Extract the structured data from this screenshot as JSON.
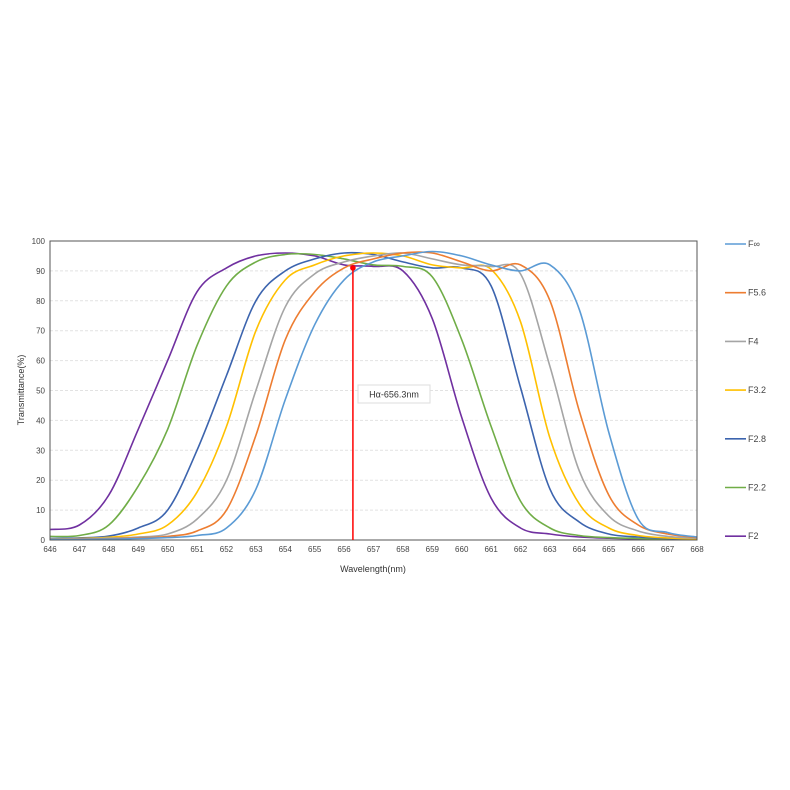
{
  "chart_data": {
    "type": "line",
    "title": "",
    "xlabel": "Wavelength(nm)",
    "ylabel": "Transmittance(%)",
    "xlim": [
      646,
      668
    ],
    "ylim": [
      0,
      100
    ],
    "xticks": [
      646,
      647,
      648,
      649,
      650,
      651,
      652,
      653,
      654,
      655,
      656,
      657,
      658,
      659,
      660,
      661,
      662,
      663,
      664,
      665,
      666,
      667,
      668
    ],
    "yticks": [
      0,
      10,
      20,
      30,
      40,
      50,
      60,
      70,
      80,
      90,
      100
    ],
    "grid": "horizontal dashed",
    "legend_position": "right",
    "x": [
      646,
      647,
      648,
      649,
      650,
      651,
      652,
      653,
      654,
      655,
      656,
      657,
      658,
      659,
      660,
      661,
      662,
      663,
      664,
      665,
      666,
      667,
      668
    ],
    "series": [
      {
        "name": "F∞",
        "color": "#5B9BD5",
        "values": [
          0.2,
          0.2,
          0.3,
          0.5,
          0.8,
          1.5,
          4,
          17,
          47,
          72,
          87,
          93,
          95,
          96.5,
          95,
          92,
          90,
          92,
          77,
          36,
          7,
          2.5,
          1
        ]
      },
      {
        "name": "F5.6",
        "color": "#ED7D31",
        "values": [
          0.2,
          0.3,
          0.4,
          0.7,
          1.2,
          3,
          10,
          35,
          67,
          83,
          91,
          94,
          96,
          96,
          93,
          90,
          92,
          80,
          43,
          15,
          5,
          2,
          0.8
        ]
      },
      {
        "name": "F4",
        "color": "#A5A5A5",
        "values": [
          0.3,
          0.4,
          0.6,
          1,
          2,
          7,
          20,
          50,
          78,
          89,
          93,
          95,
          96,
          94,
          92,
          91.5,
          89,
          58,
          23,
          8,
          3,
          1.2,
          0.6
        ]
      },
      {
        "name": "F3.2",
        "color": "#FFC000",
        "values": [
          0.3,
          0.5,
          0.9,
          2,
          5,
          16,
          38,
          70,
          87,
          92,
          95,
          96,
          95,
          92,
          91,
          90.5,
          73,
          34,
          12,
          4,
          1.5,
          0.7,
          0.4
        ]
      },
      {
        "name": "F2.8",
        "color": "#3C64AE",
        "values": [
          0.5,
          0.7,
          1.3,
          4,
          10,
          30,
          55,
          80,
          90,
          94,
          96,
          95.5,
          93,
          91,
          91,
          85,
          51,
          17,
          6,
          2,
          1,
          0.5,
          0.3
        ]
      },
      {
        "name": "F2.2",
        "color": "#70AD47",
        "values": [
          1.2,
          1.5,
          5,
          18,
          37,
          65,
          85,
          93,
          95.5,
          95.5,
          94,
          92,
          91.5,
          88,
          67,
          38,
          13,
          4,
          1.5,
          0.8,
          0.5,
          0.3,
          0.2
        ]
      },
      {
        "name": "F2",
        "color": "#7030A0",
        "values": [
          3.5,
          5,
          15,
          37,
          60,
          83,
          91,
          95,
          96,
          95,
          92,
          91.5,
          90,
          74,
          41,
          14,
          4,
          2,
          1,
          0.6,
          0.4,
          0.3,
          0.2
        ]
      }
    ],
    "annotation": {
      "text": "Hα-656.3nm",
      "x": 656.3,
      "marker_y": 91,
      "color": "#FF0000"
    }
  }
}
